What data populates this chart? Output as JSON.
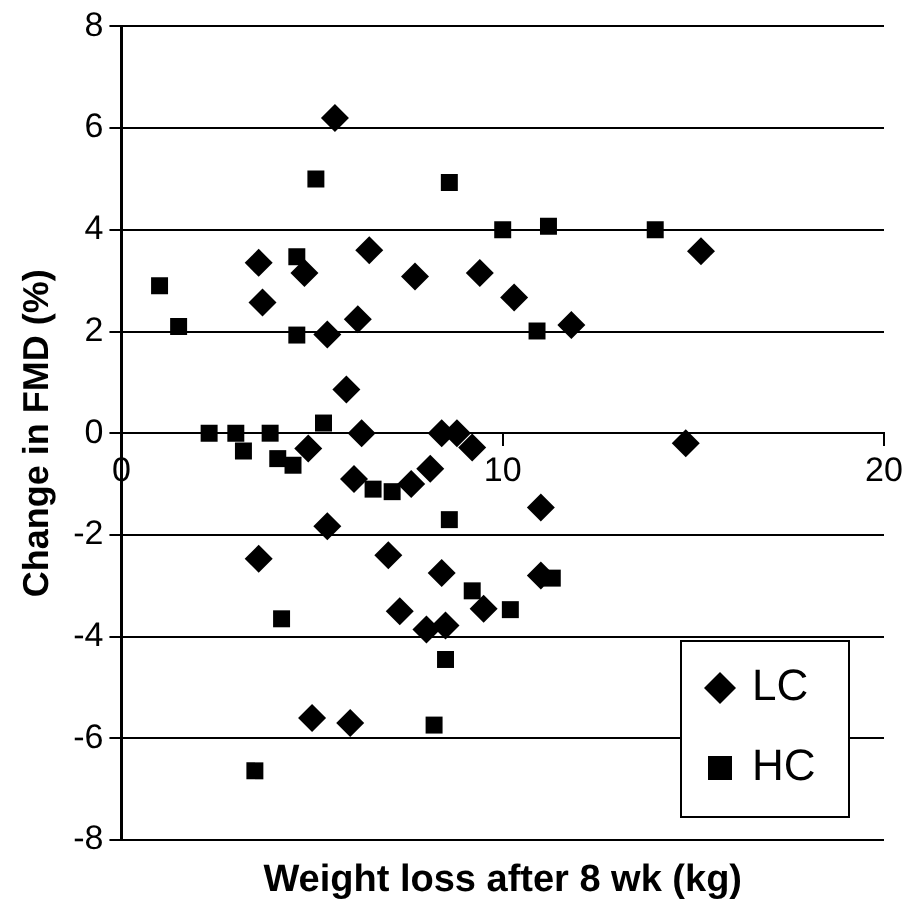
{
  "chart_data": {
    "type": "scatter",
    "xlabel": "Weight loss after 8 wk (kg)",
    "ylabel": "Change in FMD (%)",
    "xlim": [
      0,
      20
    ],
    "xticks": [
      0,
      10,
      20
    ],
    "ylim": [
      -8,
      8
    ],
    "yticks": [
      -8,
      -6,
      -4,
      -2,
      0,
      2,
      4,
      6,
      8
    ],
    "grid": "y",
    "legend": "bottom right",
    "series": [
      {
        "name": "LC",
        "color": "#000000",
        "marker": "diamond",
        "x": [
          5.6,
          3.6,
          4.8,
          3.7,
          6.5,
          7.7,
          9.4,
          10.3,
          11.8,
          15.2,
          5.4,
          6.2,
          5.9,
          6.3,
          8.4,
          8.8,
          9.2,
          4.9,
          14.8,
          6.1,
          7.6,
          8.1,
          5.4,
          3.6,
          7.0,
          8.4,
          11.0,
          11.0,
          9.5,
          7.3,
          8.0,
          8.5,
          5.0,
          6.0
        ],
        "values": [
          6.2,
          3.35,
          3.15,
          2.57,
          3.6,
          3.08,
          3.15,
          2.67,
          2.13,
          3.58,
          1.94,
          2.24,
          0.86,
          0,
          0,
          0,
          -0.28,
          -0.3,
          -0.2,
          -0.9,
          -1.0,
          -0.7,
          -1.83,
          -2.47,
          -2.4,
          -2.75,
          -1.46,
          -2.8,
          -3.45,
          -3.5,
          -3.86,
          -3.78,
          -5.6,
          -5.7
        ]
      },
      {
        "name": "HC",
        "color": "#000000",
        "marker": "square",
        "x": [
          1.0,
          1.5,
          5.1,
          4.6,
          4.6,
          8.6,
          10.0,
          11.2,
          14.0,
          10.9,
          2.3,
          3.0,
          3.9,
          5.3,
          3.2,
          4.1,
          4.5,
          6.6,
          7.1,
          8.6,
          9.2,
          10.2,
          11.3,
          4.2,
          8.5,
          8.2,
          3.5
        ],
        "values": [
          2.9,
          2.1,
          5.0,
          3.47,
          1.93,
          4.93,
          4.0,
          4.07,
          4.0,
          2.01,
          0,
          0,
          0,
          0.2,
          -0.35,
          -0.5,
          -0.63,
          -1.1,
          -1.15,
          -1.7,
          -3.1,
          -3.47,
          -2.85,
          -3.65,
          -4.45,
          -5.74,
          -6.64
        ]
      }
    ]
  }
}
